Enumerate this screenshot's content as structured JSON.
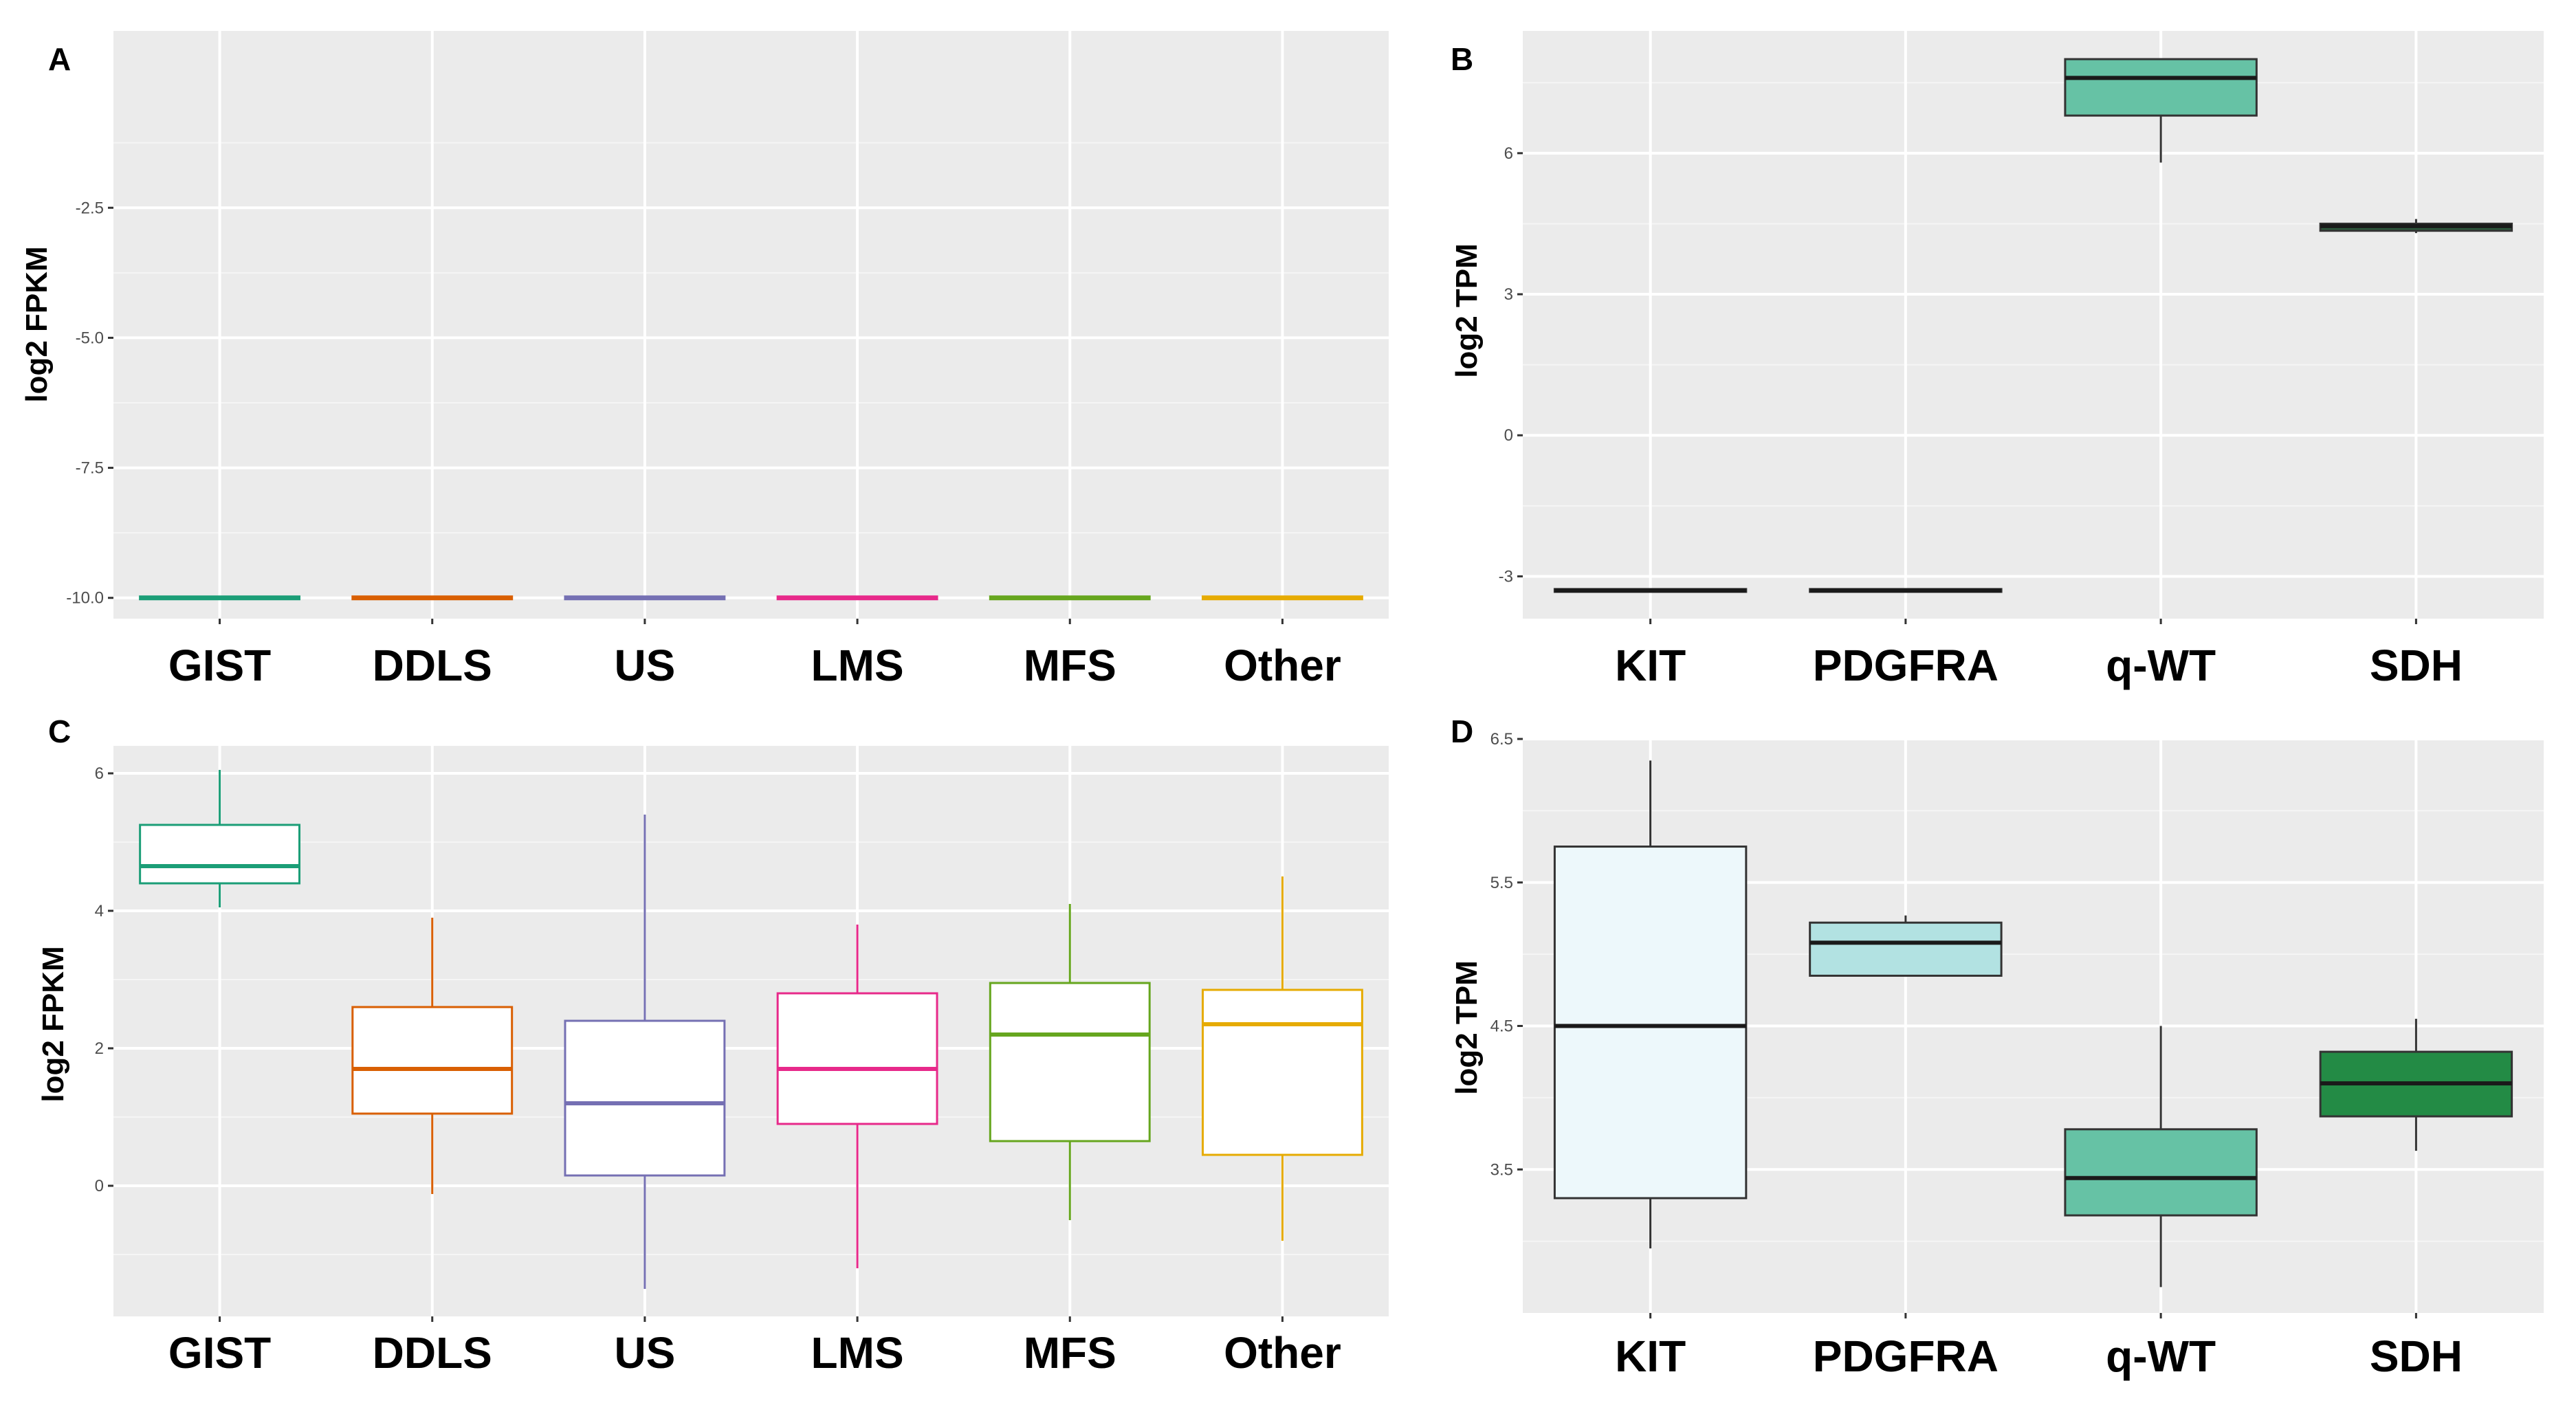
{
  "chart_data": [
    {
      "panel": "A",
      "type": "box",
      "ylabel": "log2 FPKM",
      "xlabel": "",
      "ylim": [
        -10.4,
        0.9
      ],
      "yticks": [
        -10.0,
        -7.5,
        -5.0,
        -2.5
      ],
      "ytick_labels": [
        "-10.0",
        "-7.5",
        "-5.0",
        "-2.5"
      ],
      "categories": [
        "GIST",
        "DDLS",
        "US",
        "LMS",
        "MFS",
        "Other"
      ],
      "style": "outline",
      "colors": [
        "#1b9e77",
        "#d95f02",
        "#7570b3",
        "#e7298a",
        "#66a61e",
        "#e6ab02"
      ],
      "boxes": [
        {
          "min": -10,
          "q1": -10,
          "median": -10,
          "q3": -10,
          "max": -10
        },
        {
          "min": -10,
          "q1": -10,
          "median": -10,
          "q3": -10,
          "max": -10
        },
        {
          "min": -10,
          "q1": -10,
          "median": -10,
          "q3": -10,
          "max": -10
        },
        {
          "min": -10,
          "q1": -10,
          "median": -10,
          "q3": -10,
          "max": -10
        },
        {
          "min": -10,
          "q1": -10,
          "median": -10,
          "q3": -10,
          "max": -10
        },
        {
          "min": -10,
          "q1": -10,
          "median": -10,
          "q3": -10,
          "max": -10
        }
      ]
    },
    {
      "panel": "B",
      "type": "box",
      "ylabel": "log2 TPM",
      "xlabel": "",
      "ylim": [
        -3.9,
        8.6
      ],
      "yticks": [
        -3,
        0,
        3,
        6
      ],
      "ytick_labels": [
        "-3",
        "0",
        "3",
        "6"
      ],
      "categories": [
        "KIT",
        "PDGFRA",
        "q-WT",
        "SDH"
      ],
      "style": "filled",
      "colors": [
        "#1a1a1a",
        "#1a1a1a",
        "#66c2a5",
        "#2d5a3d"
      ],
      "boxes": [
        {
          "min": -3.3,
          "q1": -3.3,
          "median": -3.3,
          "q3": -3.3,
          "max": -3.3
        },
        {
          "min": -3.3,
          "q1": -3.3,
          "median": -3.3,
          "q3": -3.3,
          "max": -3.3
        },
        {
          "min": 5.8,
          "q1": 6.8,
          "median": 7.6,
          "q3": 8.0,
          "max": 8.0
        },
        {
          "min": 4.3,
          "q1": 4.35,
          "median": 4.45,
          "q3": 4.5,
          "max": 4.6
        }
      ]
    },
    {
      "panel": "C",
      "type": "box",
      "ylabel": "log2 FPKM",
      "xlabel": "",
      "ylim": [
        -1.9,
        6.4
      ],
      "yticks": [
        0,
        2,
        4,
        6
      ],
      "ytick_labels": [
        "0",
        "2",
        "4",
        "6"
      ],
      "categories": [
        "GIST",
        "DDLS",
        "US",
        "LMS",
        "MFS",
        "Other"
      ],
      "style": "outline",
      "colors": [
        "#1b9e77",
        "#d95f02",
        "#7570b3",
        "#e7298a",
        "#66a61e",
        "#e6ab02"
      ],
      "boxes": [
        {
          "min": 4.05,
          "q1": 4.4,
          "median": 4.65,
          "q3": 5.25,
          "max": 6.05
        },
        {
          "min": -0.12,
          "q1": 1.05,
          "median": 1.7,
          "q3": 2.6,
          "max": 3.9
        },
        {
          "min": -1.5,
          "q1": 0.15,
          "median": 1.2,
          "q3": 2.4,
          "max": 5.4
        },
        {
          "min": -1.2,
          "q1": 0.9,
          "median": 1.7,
          "q3": 2.8,
          "max": 3.8
        },
        {
          "min": -0.5,
          "q1": 0.65,
          "median": 2.2,
          "q3": 2.95,
          "max": 4.1
        },
        {
          "min": -0.8,
          "q1": 0.45,
          "median": 2.35,
          "q3": 2.85,
          "max": 4.5
        }
      ]
    },
    {
      "panel": "D",
      "type": "box",
      "ylabel": "log2 TPM",
      "xlabel": "",
      "ylim": [
        2.5,
        6.5
      ],
      "yticks": [
        3.5,
        4.5,
        5.5,
        6.5
      ],
      "ytick_labels": [
        "3.5",
        "4.5",
        "5.5",
        "6.5"
      ],
      "categories": [
        "KIT",
        "PDGFRA",
        "q-WT",
        "SDH"
      ],
      "style": "filled",
      "colors": [
        "#edf8fb",
        "#b2e2e2",
        "#66c2a5",
        "#238b45"
      ],
      "boxes": [
        {
          "min": 2.95,
          "q1": 3.3,
          "median": 4.5,
          "q3": 5.75,
          "max": 6.35
        },
        {
          "min": 4.85,
          "q1": 4.85,
          "median": 5.08,
          "q3": 5.22,
          "max": 5.27
        },
        {
          "min": 2.68,
          "q1": 3.18,
          "median": 3.44,
          "q3": 3.78,
          "max": 4.5
        },
        {
          "min": 3.63,
          "q1": 3.87,
          "median": 4.1,
          "q3": 4.32,
          "max": 4.55
        }
      ]
    }
  ]
}
